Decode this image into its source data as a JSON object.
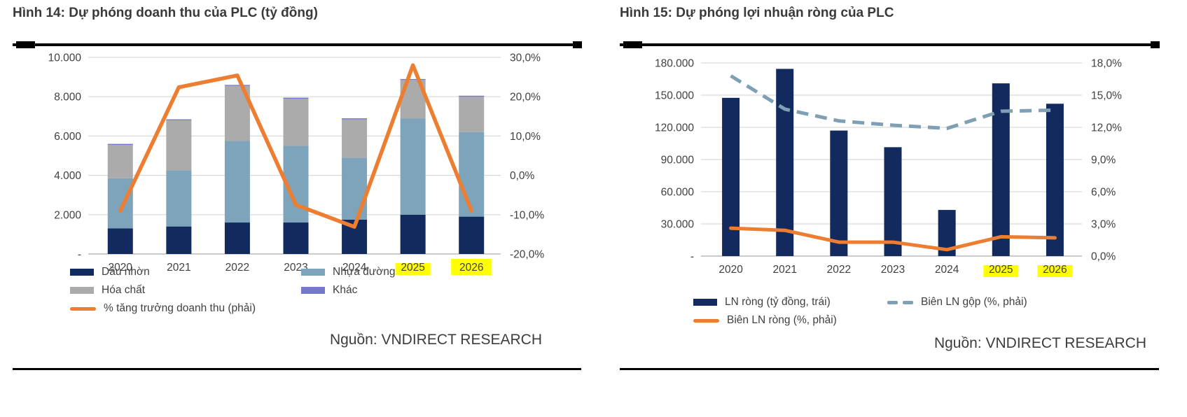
{
  "figures": [
    {
      "title": "Hình 14: Dự phóng doanh thu của PLC (tỷ đồng)",
      "source": "Nguồn: VNDIRECT RESEARCH",
      "chart_data": {
        "type": "stacked-bar-with-line",
        "categories": [
          "2020",
          "2021",
          "2022",
          "2023",
          "2024",
          "2025",
          "2026"
        ],
        "highlighted_categories": {
          "2025": "under",
          "2026": "full"
        },
        "highlight_color": "#ffff00",
        "left_axis": {
          "min": 0,
          "max": 10000,
          "ticks": [
            "10.000",
            "8.000",
            "6.000",
            "4.000",
            "2.000",
            "-"
          ]
        },
        "right_axis": {
          "min": -20,
          "max": 30,
          "ticks": [
            "30,0%",
            "20,0%",
            "10,0%",
            "0,0%",
            "-10,0%",
            "-20,0%"
          ]
        },
        "bar_series": [
          {
            "name": "Dầu nhờn",
            "color": "#132a5e",
            "values": [
              1300,
              1400,
              1600,
              1600,
              1750,
              2000,
              1900
            ]
          },
          {
            "name": "Nhựa đường",
            "color": "#7da4bb",
            "values": [
              2550,
              2850,
              4150,
              3900,
              3150,
              4900,
              4300
            ]
          },
          {
            "name": "Hóa chất",
            "color": "#ababab",
            "values": [
              1700,
              2550,
              2800,
              2400,
              1950,
              1950,
              1800
            ]
          },
          {
            "name": "Khác",
            "color": "#7478d0",
            "values": [
              50,
              50,
              50,
              50,
              50,
              50,
              50
            ]
          }
        ],
        "line_series": [
          {
            "name": "% tăng trưởng doanh thu (phải)",
            "color": "#ed7d31",
            "style": "solid",
            "axis": "right",
            "values": [
              -9,
              22.4,
              25.4,
              -7.5,
              -13.1,
              28,
              -9
            ]
          }
        ],
        "grid": true,
        "legend_position": "bottom"
      },
      "legend": {
        "rows": [
          [
            {
              "swatch": "bar",
              "color": "#132a5e",
              "label": "Dầu nhờn"
            },
            {
              "swatch": "bar",
              "color": "#7da4bb",
              "label": "Nhựa đường"
            }
          ],
          [
            {
              "swatch": "bar",
              "color": "#ababab",
              "label": "Hóa chất"
            },
            {
              "swatch": "bar",
              "color": "#7478d0",
              "label": "Khác"
            }
          ],
          [
            {
              "swatch": "line",
              "color": "#ed7d31",
              "label": "% tăng trưởng doanh thu (phải)"
            }
          ]
        ]
      }
    },
    {
      "title": "Hình 15: Dự phóng lợi nhuận ròng của PLC",
      "source": "Nguồn: VNDIRECT RESEARCH",
      "chart_data": {
        "type": "bar-with-lines",
        "categories": [
          "2020",
          "2021",
          "2022",
          "2023",
          "2024",
          "2025",
          "2026"
        ],
        "highlighted_categories": {
          "2025": "under",
          "2026": "under"
        },
        "highlight_color": "#ffff00",
        "left_axis": {
          "min": 0,
          "max": 180000,
          "ticks": [
            "180.000",
            "150.000",
            "120.000",
            "90.000",
            "60.000",
            "30.000",
            "-"
          ]
        },
        "right_axis": {
          "min": 0,
          "max": 18,
          "ticks": [
            "18,0%",
            "15,0%",
            "12,0%",
            "9,0%",
            "6,0%",
            "3,0%",
            "0,0%"
          ]
        },
        "bar_series": [
          {
            "name": "LN ròng (tỷ đồng, trái)",
            "color": "#132a5e",
            "values": [
              147500,
              174500,
              117000,
              101500,
              43000,
              161000,
              142000
            ]
          }
        ],
        "line_series": [
          {
            "name": "Biên LN gộp (%, phải)",
            "color": "#7e9fb4",
            "style": "dashed",
            "axis": "right",
            "values": [
              16.8,
              13.7,
              12.6,
              12.2,
              11.9,
              13.5,
              13.6
            ]
          },
          {
            "name": "Biên LN ròng (%, phải)",
            "color": "#ed7d31",
            "style": "solid",
            "axis": "right",
            "values": [
              2.6,
              2.4,
              1.3,
              1.3,
              0.6,
              1.8,
              1.7
            ]
          }
        ],
        "grid": true,
        "legend_position": "bottom"
      },
      "legend": {
        "rows": [
          [
            {
              "swatch": "bar",
              "color": "#132a5e",
              "label": "LN ròng (tỷ đồng, trái)"
            },
            {
              "swatch": "dashed",
              "color": "#7e9fb4",
              "label": "Biên LN gộp (%, phải)"
            }
          ],
          [
            {
              "swatch": "line",
              "color": "#ed7d31",
              "label": "Biên LN ròng (%, phải)"
            }
          ]
        ]
      }
    }
  ]
}
